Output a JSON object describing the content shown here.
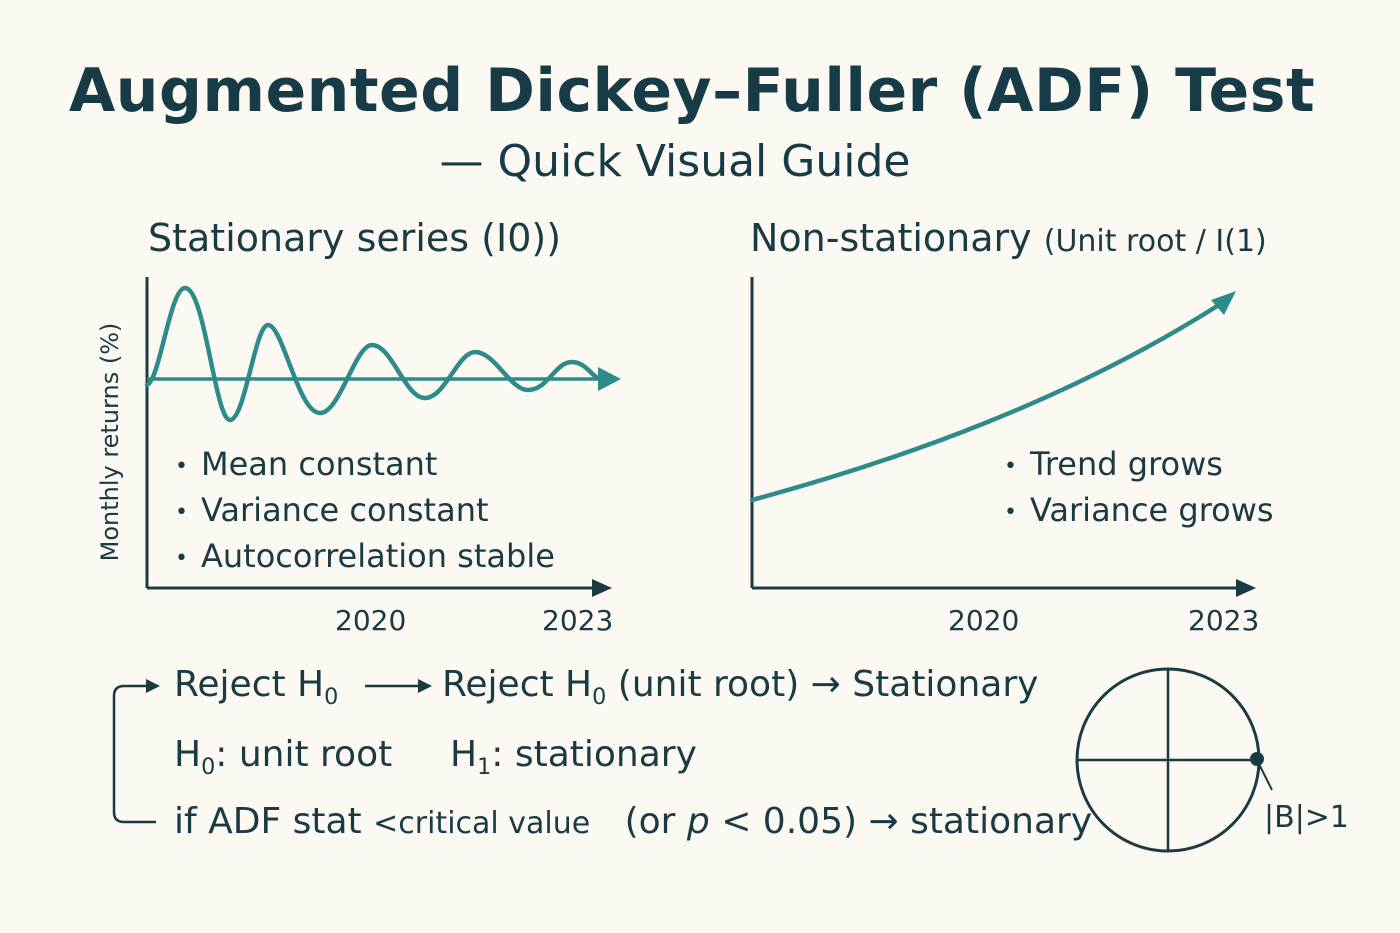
{
  "header": {
    "title": "Augmented Dickey–Fuller (ADF) Test",
    "subtitle": "— Quick Visual Guide"
  },
  "left_panel": {
    "title": "Stationary series (I0))",
    "ylabel": "Monthly returns (%)",
    "bullets": [
      "Mean constant",
      "Variance constant",
      "Autocorrelation stable"
    ],
    "ticks": [
      "2020",
      "2023"
    ]
  },
  "right_panel": {
    "title_main": "Non-stationary",
    "title_note": "(Unit root / I(1)",
    "bullets": [
      "Trend grows",
      "Variance grows"
    ],
    "ticks": [
      "2020",
      "2023"
    ]
  },
  "decision": {
    "line1_a": "Reject H",
    "line1_a_sub": "0",
    "line1_b": "Reject H",
    "line1_b_sub": "0",
    "line1_c": "(unit root) → Stationary",
    "h0_label": "H",
    "h0_sub": "0",
    "h0_text": ": unit root",
    "h1_label": "H",
    "h1_sub": "1",
    "h1_text": ": stationary",
    "rule_a": "if ADF stat",
    "rule_b": "<critical value",
    "rule_c": "(or",
    "rule_p": "p",
    "rule_d": "< 0.05) → stationary"
  },
  "unit_circle": {
    "label": "|B|>1"
  },
  "colors": {
    "teal": "#2f8a8a",
    "ink": "#1a3a44",
    "background": "#fcf9f2"
  }
}
